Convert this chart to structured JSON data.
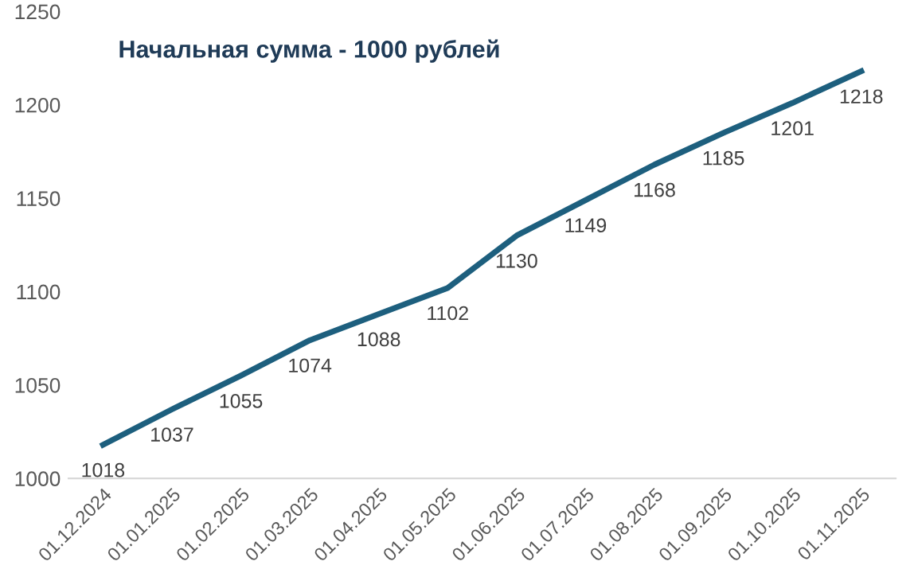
{
  "chart_data": {
    "type": "line",
    "title": "Начальная сумма - 1000 рублей",
    "categories": [
      "01.12.2024",
      "01.01.2025",
      "01.02.2025",
      "01.03.2025",
      "01.04.2025",
      "01.05.2025",
      "01.06.2025",
      "01.07.2025",
      "01.08.2025",
      "01.09.2025",
      "01.10.2025",
      "01.11.2025"
    ],
    "series": [
      {
        "color": "#1d5f7e",
        "values": [
          1018,
          1037,
          1055,
          1074,
          1088,
          1102,
          1130,
          1149,
          1168,
          1185,
          1201,
          1218
        ]
      }
    ],
    "ylim": [
      1000,
      1250
    ],
    "yticks": [
      1000,
      1050,
      1100,
      1150,
      1200,
      1250
    ],
    "data_labels": true,
    "grid": false,
    "legend": false,
    "marker": "none",
    "line_style": "solid"
  }
}
